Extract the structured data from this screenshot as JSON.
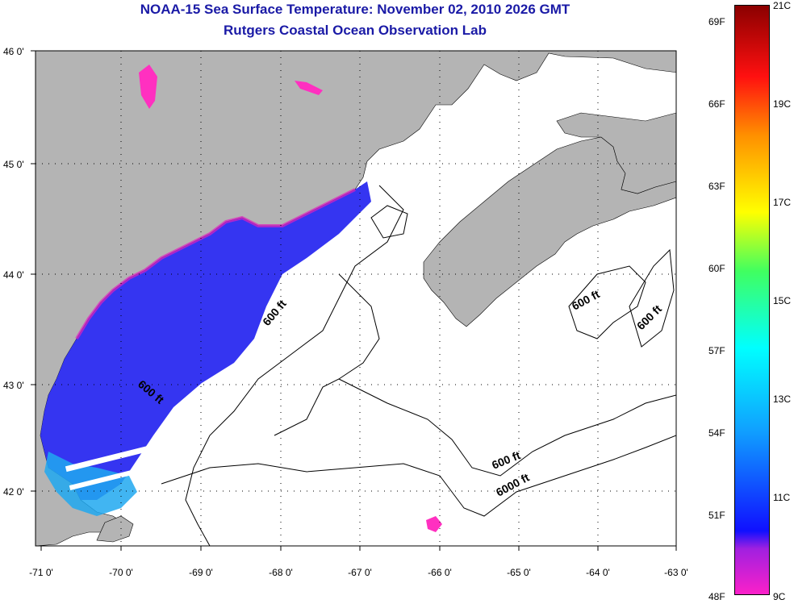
{
  "title": "NOAA-15 Sea Surface Temperature:  November 02, 2010 2026 GMT",
  "subtitle": "Rutgers Coastal Ocean Observation Lab",
  "lat_ticks": [
    "46 0'",
    "45 0'",
    "44 0'",
    "43 0'",
    "42 0'"
  ],
  "lon_ticks": [
    "-71 0'",
    "-70 0'",
    "-69 0'",
    "-68 0'",
    "-67 0'",
    "-66 0'",
    "-65 0'",
    "-64 0'",
    "-63 0'"
  ],
  "contour_labels": [
    "600 ft",
    "600 ft",
    "600 ft",
    "600 ft",
    "600 ft",
    "6000 ft"
  ],
  "colorbar": {
    "fahrenheit": [
      "69F",
      "66F",
      "63F",
      "60F",
      "57F",
      "54F",
      "51F",
      "48F"
    ],
    "celsius": [
      "21C",
      "19C",
      "17C",
      "15C",
      "13C",
      "11C",
      "9C"
    ]
  },
  "colors": {
    "land": "#b4b4b4",
    "ocean": "#ffffff",
    "title": "#1a1aa6"
  }
}
